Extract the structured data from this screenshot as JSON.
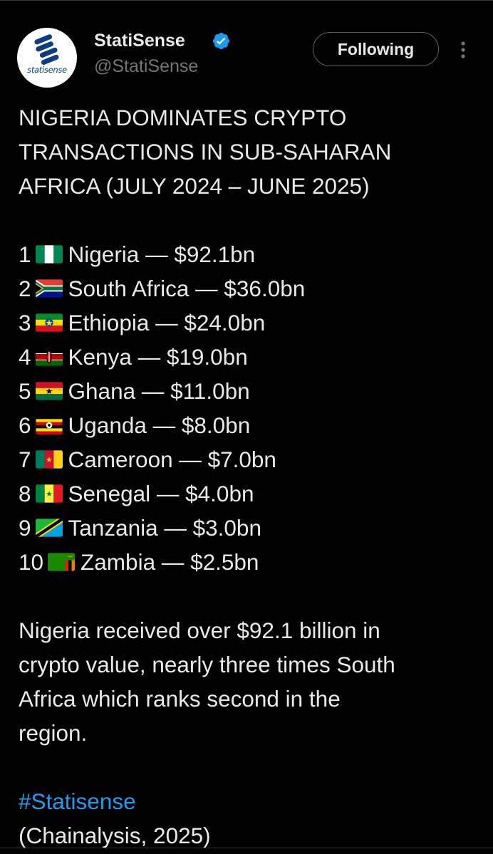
{
  "author": {
    "display_name": "StatiSense",
    "handle": "@StatiSense",
    "avatar_text": "statisense",
    "verified": true
  },
  "follow_button": {
    "label": "Following"
  },
  "tweet": {
    "title_lines": [
      "NIGERIA DOMINATES CRYPTO",
      "TRANSACTIONS IN SUB-SAHARAN",
      "AFRICA (JULY 2024 – JUNE 2025)"
    ],
    "ranking": [
      {
        "rank": "1",
        "flag": "nigeria-flag-icon",
        "text": "Nigeria — $92.1bn"
      },
      {
        "rank": "2",
        "flag": "south-africa-flag-icon",
        "text": "South Africa — $36.0bn"
      },
      {
        "rank": "3",
        "flag": "ethiopia-flag-icon",
        "text": "Ethiopia — $24.0bn"
      },
      {
        "rank": "4",
        "flag": "kenya-flag-icon",
        "text": "Kenya — $19.0bn"
      },
      {
        "rank": "5",
        "flag": "ghana-flag-icon",
        "text": "Ghana — $11.0bn"
      },
      {
        "rank": "6",
        "flag": "uganda-flag-icon",
        "text": "Uganda — $8.0bn"
      },
      {
        "rank": "7",
        "flag": "cameroon-flag-icon",
        "text": "Cameroon — $7.0bn"
      },
      {
        "rank": "8",
        "flag": "senegal-flag-icon",
        "text": "Senegal — $4.0bn"
      },
      {
        "rank": "9",
        "flag": "tanzania-flag-icon",
        "text": "Tanzania — $3.0bn"
      },
      {
        "rank": "10",
        "flag": "zambia-flag-icon",
        "text": "Zambia — $2.5bn"
      }
    ],
    "summary_lines": [
      "Nigeria received over $92.1 billion in",
      "crypto value, nearly three times South",
      "Africa which ranks second in the",
      "region."
    ],
    "hashtag": "#Statisense",
    "source": "(Chainalysis, 2025)"
  },
  "colors": {
    "background": "#000000",
    "text": "#e7e9ea",
    "secondary_text": "#71767b",
    "link": "#1d9bf0",
    "verified": "#1d9bf0"
  }
}
